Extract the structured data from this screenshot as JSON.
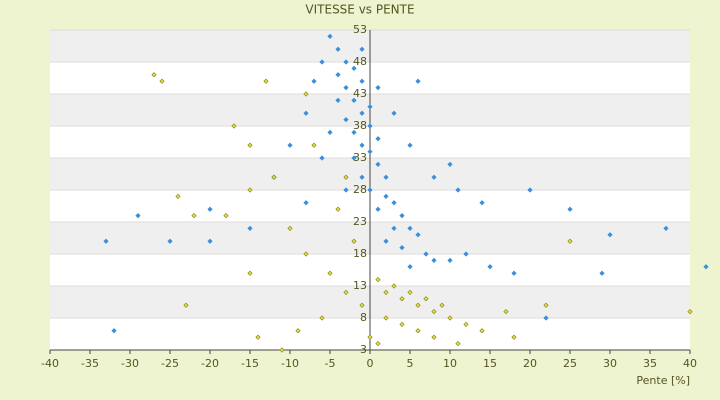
{
  "chart_data": {
    "type": "scatter",
    "title": "VITESSE vs PENTE",
    "x_label": "Pente [%]",
    "xlim": [
      -40,
      40
    ],
    "xticks": [
      -40,
      -35,
      -30,
      -25,
      -20,
      -15,
      -10,
      -5,
      0,
      5,
      10,
      15,
      20,
      25,
      30,
      35,
      40
    ],
    "ylim": [
      3,
      53
    ],
    "yticks": [
      3,
      8,
      13,
      18,
      23,
      28,
      33,
      38,
      43,
      48,
      53
    ],
    "grid": true,
    "series": [
      {
        "color": "#3a8fd8",
        "x": [
          -5,
          -4,
          -3,
          -4,
          -2,
          -3,
          -1,
          -2,
          -4,
          -1,
          0,
          -3,
          -2,
          0,
          1,
          -1,
          -2,
          0,
          1,
          2,
          -1,
          0,
          2,
          3,
          1,
          4,
          3,
          5,
          6,
          2,
          4,
          7,
          8,
          5,
          10,
          12,
          15,
          18,
          -6,
          -7,
          -8,
          -5,
          -6,
          -10,
          -12,
          -8,
          -15,
          -20,
          -25,
          -29,
          -33,
          -32,
          3,
          5,
          8,
          10,
          14,
          20,
          25,
          30,
          37,
          42,
          29,
          22,
          -20,
          -3,
          1,
          -1,
          6,
          11
        ],
        "values": [
          52,
          50,
          48,
          46,
          47,
          44,
          45,
          42,
          42,
          40,
          41,
          39,
          37,
          38,
          36,
          35,
          33,
          34,
          32,
          30,
          30,
          28,
          27,
          26,
          25,
          24,
          22,
          22,
          21,
          20,
          19,
          18,
          17,
          16,
          17,
          18,
          16,
          15,
          48,
          45,
          40,
          37,
          33,
          35,
          30,
          26,
          22,
          25,
          20,
          24,
          20,
          6,
          40,
          35,
          30,
          32,
          26,
          28,
          25,
          21,
          22,
          16,
          15,
          8,
          20,
          28,
          44,
          50,
          45,
          28
        ]
      },
      {
        "color": "#8a8a00",
        "x": [
          -27,
          -26,
          -13,
          -17,
          -24,
          -22,
          -18,
          -15,
          -12,
          -10,
          -8,
          -5,
          -3,
          -1,
          -6,
          -9,
          -14,
          -23,
          -15,
          -4,
          -2,
          1,
          2,
          3,
          4,
          5,
          6,
          7,
          8,
          9,
          10,
          12,
          14,
          17,
          18,
          22,
          2,
          4,
          6,
          8,
          0,
          1,
          -11,
          -7,
          -3,
          -15,
          40,
          25,
          -8,
          11
        ],
        "values": [
          46,
          45,
          45,
          38,
          27,
          24,
          24,
          28,
          30,
          22,
          18,
          15,
          12,
          10,
          8,
          6,
          5,
          10,
          15,
          25,
          20,
          14,
          12,
          13,
          11,
          12,
          10,
          11,
          9,
          10,
          8,
          7,
          6,
          9,
          5,
          10,
          8,
          7,
          6,
          5,
          5,
          4,
          3,
          35,
          30,
          35,
          9,
          20,
          43,
          4
        ]
      }
    ]
  }
}
